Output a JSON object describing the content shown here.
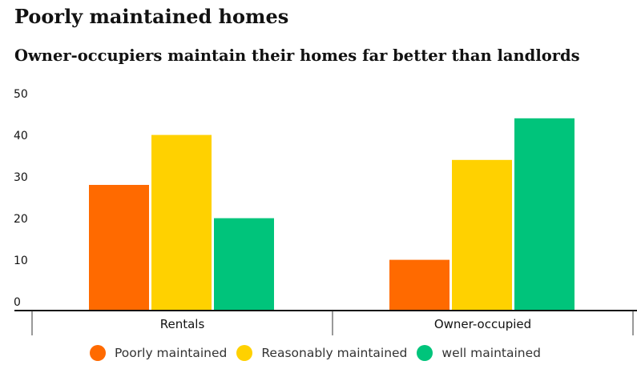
{
  "chart_data": {
    "type": "bar",
    "title": "Poorly maintained homes",
    "subtitle": "Owner-occupiers maintain their homes far better than landlords",
    "categories": [
      "Rentals",
      "Owner-occupied"
    ],
    "series": [
      {
        "name": "Poorly maintained",
        "color": "#ff6a00",
        "values": [
          30,
          12
        ]
      },
      {
        "name": "Reasonably maintained",
        "color": "#ffd100",
        "values": [
          42,
          36
        ]
      },
      {
        "name": "well maintained",
        "color": "#00c47b",
        "values": [
          22,
          46
        ]
      }
    ],
    "y_ticks": [
      "0",
      "10",
      "20",
      "30",
      "40",
      "50"
    ],
    "ylim": [
      0,
      52
    ],
    "xlabel": "",
    "ylabel": "",
    "grid": false,
    "legend_position": "bottom"
  }
}
